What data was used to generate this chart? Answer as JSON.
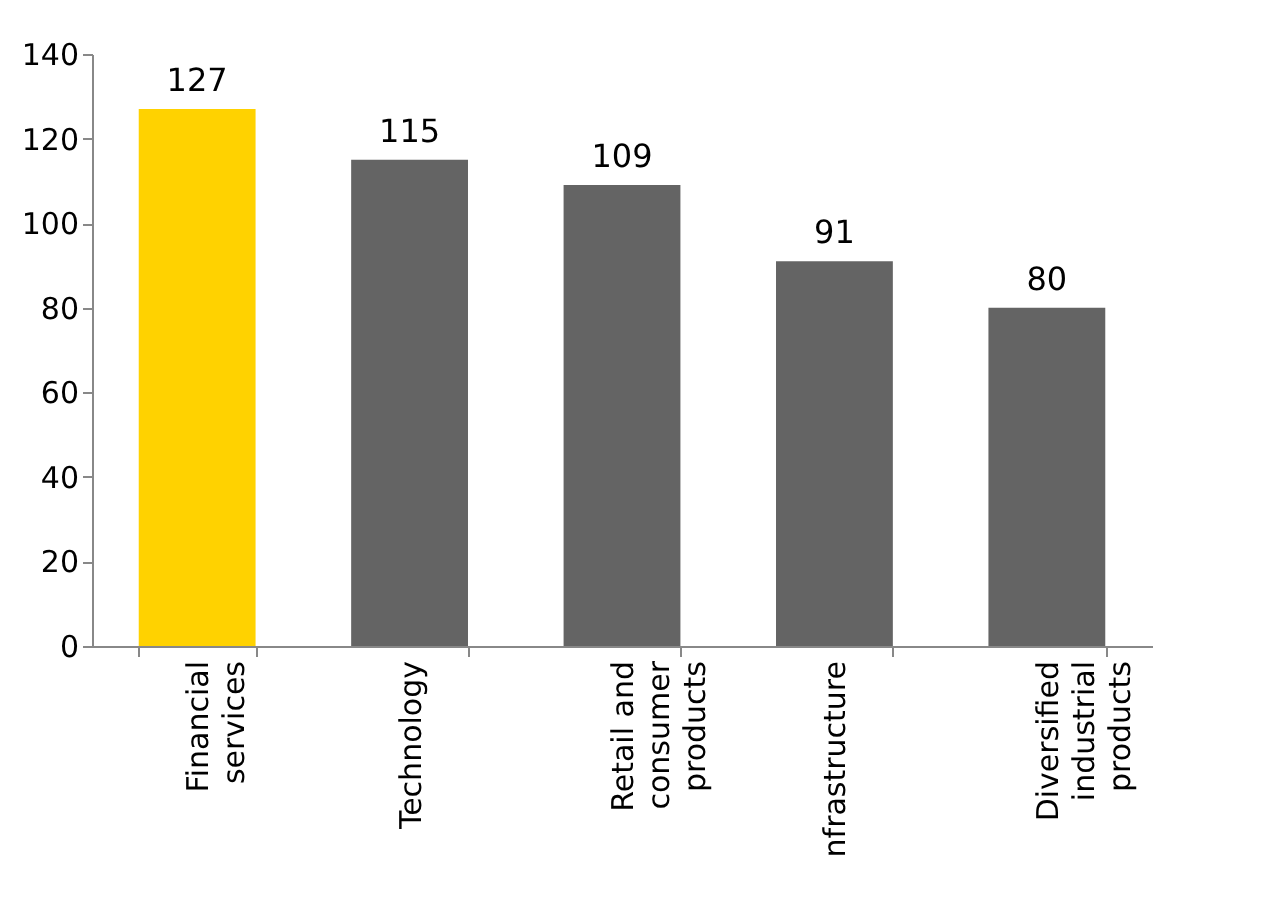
{
  "chart_data": {
    "type": "bar",
    "categories": [
      "Financial\nservices",
      "Technology",
      "Retail and\nconsumer\nproducts",
      "nfrastructure",
      "Diversified\nindustrial\nproducts"
    ],
    "values": [
      127,
      115,
      109,
      91,
      80
    ],
    "colors": [
      "#ffd200",
      "#646464",
      "#646464",
      "#646464",
      "#646464"
    ],
    "ylim": [
      0,
      140
    ],
    "yticks": [
      0,
      20,
      40,
      60,
      80,
      100,
      120,
      140
    ],
    "data_labels": true,
    "grid": false
  }
}
